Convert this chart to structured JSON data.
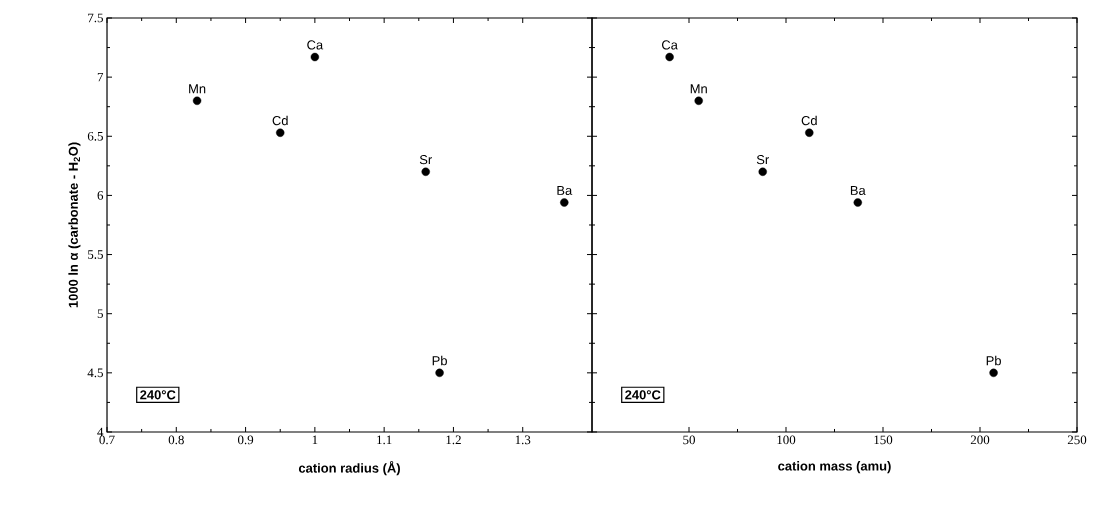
{
  "chart_data": [
    {
      "type": "scatter",
      "xlabel": "cation radius (Å)",
      "ylabel": "**1000 ln α (carbonate - H$_{2}$O)**",
      "x": [
        0.83,
        0.95,
        1.0,
        1.16,
        1.36,
        1.18
      ],
      "values": [
        6.8,
        6.53,
        7.17,
        6.2,
        5.94,
        4.5
      ],
      "color": "#000000",
      "marker": "circle",
      "xlim": [
        0.7,
        1.4
      ],
      "xticks": [
        0.7,
        0.8,
        0.9,
        1,
        1.1,
        1.2,
        1.3
      ],
      "ylim": [
        4,
        7.5
      ],
      "yticks": [
        4,
        4.5,
        5,
        5.5,
        6,
        6.5,
        7,
        7.5
      ],
      "annotations": [
        {
          "text": "Mn",
          "x": 0.83,
          "y": 6.8
        },
        {
          "text": "Cd",
          "x": 0.95,
          "y": 6.53
        },
        {
          "text": "Ca",
          "x": 1.0,
          "y": 7.17
        },
        {
          "text": "Sr",
          "x": 1.16,
          "y": 6.2
        },
        {
          "text": "Ba",
          "x": 1.36,
          "y": 5.94
        },
        {
          "text": "Pb",
          "x": 1.18,
          "y": 4.5
        },
        "240°C"
      ]
    },
    {
      "type": "scatter",
      "xlabel": "cation mass (amu)",
      "x": [
        55,
        112,
        40,
        88,
        137,
        207
      ],
      "values": [
        6.8,
        6.53,
        7.17,
        6.2,
        5.94,
        4.5
      ],
      "color": "#000000",
      "marker": "circle",
      "xlim": [
        0,
        250
      ],
      "xticks": [
        50,
        100,
        150,
        200,
        250
      ],
      "ylim": [
        4,
        7.5
      ],
      "yticks": [
        4,
        4.5,
        5,
        5.5,
        6,
        6.5,
        7,
        7.5
      ],
      "tick_labels": "x",
      "annotations": [
        {
          "text": "Mn",
          "x": 55,
          "y": 6.8
        },
        {
          "text": "Cd",
          "x": 112,
          "y": 6.53
        },
        {
          "text": "Ca",
          "x": 40,
          "y": 7.17
        },
        {
          "text": "Sr",
          "x": 88,
          "y": 6.2
        },
        {
          "text": "Ba",
          "x": 137,
          "y": 5.94
        },
        {
          "text": "Pb",
          "x": 207,
          "y": 4.5
        },
        "240°C"
      ]
    }
  ]
}
